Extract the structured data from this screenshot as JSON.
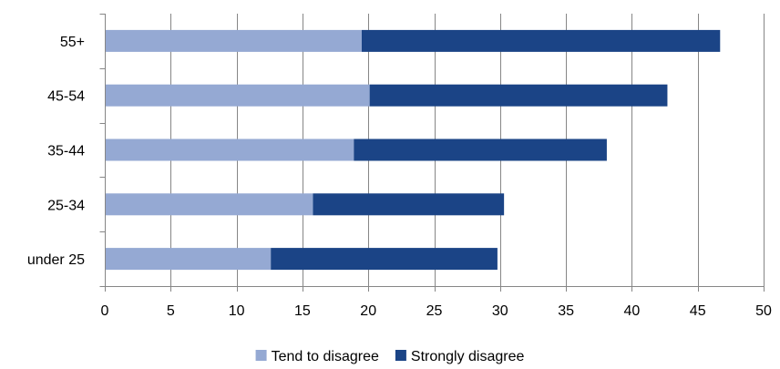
{
  "chart_data": {
    "type": "bar",
    "orientation": "horizontal",
    "stacked": true,
    "categories": [
      "55+",
      "45-54",
      "35-44",
      "25-34",
      "under 25"
    ],
    "series": [
      {
        "name": "Tend to disagree",
        "values": [
          19.5,
          20.1,
          18.9,
          15.8,
          12.6
        ],
        "color": "#95a9d3"
      },
      {
        "name": "Strongly disagree",
        "values": [
          27.2,
          22.6,
          19.2,
          14.5,
          17.2
        ],
        "color": "#1b4486"
      }
    ],
    "xlim": [
      0,
      50
    ],
    "xticks": [
      "0",
      "5",
      "10",
      "15",
      "20",
      "25",
      "30",
      "35",
      "40",
      "45",
      "50"
    ],
    "xtick_values": [
      0,
      5,
      10,
      15,
      20,
      25,
      30,
      35,
      40,
      45,
      50
    ],
    "grid": "vertical",
    "legend": "bottom",
    "gridline_color": "#868686",
    "axis_color": "#868686"
  }
}
